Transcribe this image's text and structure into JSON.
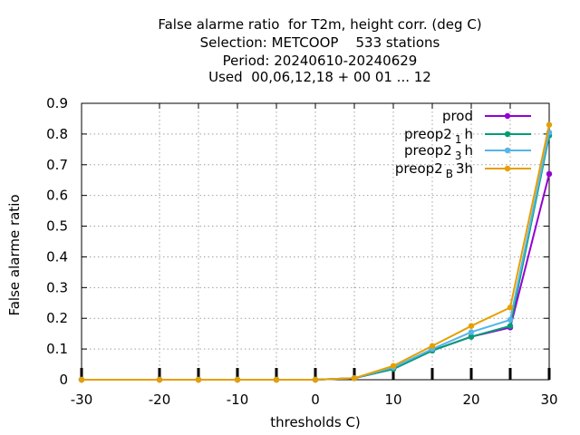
{
  "chart_data": {
    "type": "line",
    "title_lines": [
      "False alarme ratio  for T2m, height corr. (deg C)",
      "Selection: METCOOP    533 stations",
      "Period: 20240610-20240629",
      "Used  00,06,12,18 + 00 01 ... 12"
    ],
    "xlabel": "thresholds C)",
    "ylabel": "False alarme ratio",
    "xlim": [
      -30,
      30
    ],
    "ylim": [
      0,
      0.9
    ],
    "xticks": [
      -30,
      -20,
      -10,
      0,
      10,
      20,
      30
    ],
    "yticks": [
      0,
      0.1,
      0.2,
      0.3,
      0.4,
      0.5,
      0.6,
      0.7,
      0.8,
      0.9
    ],
    "x": [
      -30,
      -20,
      -15,
      -10,
      -5,
      0,
      5,
      10,
      15,
      20,
      25,
      30
    ],
    "grid": true,
    "legend_position": "top-right",
    "series": [
      {
        "name": "prod",
        "name_main": "prod",
        "name_sub": "",
        "name_tail": "",
        "color": "#9400d3",
        "values": [
          0,
          0,
          0,
          0,
          0,
          0,
          0.005,
          0.035,
          0.095,
          0.14,
          0.17,
          0.67
        ]
      },
      {
        "name": "preop2 1 h",
        "name_main": "preop2",
        "name_sub": "1",
        "name_tail": "h",
        "color": "#009e73",
        "values": [
          0,
          0,
          0,
          0,
          0,
          0,
          0.005,
          0.035,
          0.095,
          0.14,
          0.175,
          0.795
        ]
      },
      {
        "name": "preop2 3 h",
        "name_main": "preop2",
        "name_sub": "3",
        "name_tail": "h",
        "color": "#56b4e9",
        "values": [
          0,
          0,
          0,
          0,
          0,
          0,
          0.005,
          0.04,
          0.1,
          0.155,
          0.195,
          0.805
        ]
      },
      {
        "name": "preop2 B 3h",
        "name_main": "preop2",
        "name_sub": "B",
        "name_tail": "3h",
        "color": "#e69f00",
        "values": [
          0,
          0,
          0,
          0,
          0,
          0,
          0.005,
          0.045,
          0.11,
          0.175,
          0.235,
          0.83
        ]
      }
    ]
  }
}
